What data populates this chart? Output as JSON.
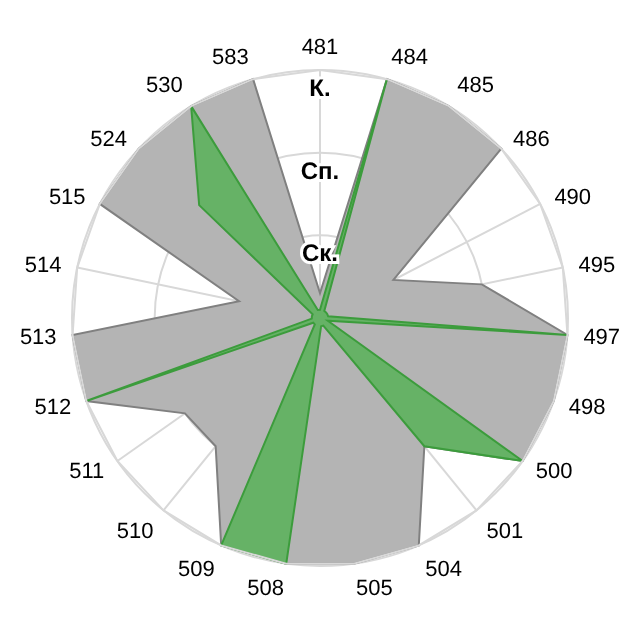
{
  "chart_data": {
    "type": "radar",
    "categories": [
      "481",
      "484",
      "485",
      "486",
      "490",
      "495",
      "497",
      "498",
      "500",
      "501",
      "504",
      "505",
      "508",
      "509",
      "510",
      "511",
      "512",
      "513",
      "514",
      "515",
      "524",
      "530",
      "583"
    ],
    "ylim": [
      0,
      3
    ],
    "yticks": [
      {
        "value": 1,
        "label": "Ск."
      },
      {
        "value": 2,
        "label": "Сп."
      },
      {
        "value": 3,
        "label": "К."
      }
    ],
    "grid": true,
    "series": [
      {
        "color": "#b4b4b4",
        "values": [
          0.3,
          3,
          3,
          3,
          1,
          2,
          3,
          3,
          3,
          2,
          3,
          3,
          3,
          3,
          2,
          2,
          3,
          3,
          1,
          3,
          3,
          3,
          3
        ]
      },
      {
        "color": "#66b266",
        "values": [
          0.1,
          3,
          0.1,
          0.1,
          0.1,
          0.1,
          3,
          0.1,
          3,
          2,
          0.1,
          0.1,
          3,
          3,
          0.1,
          0.1,
          3,
          0.1,
          0.1,
          0.1,
          2,
          3,
          0.1
        ]
      }
    ]
  }
}
